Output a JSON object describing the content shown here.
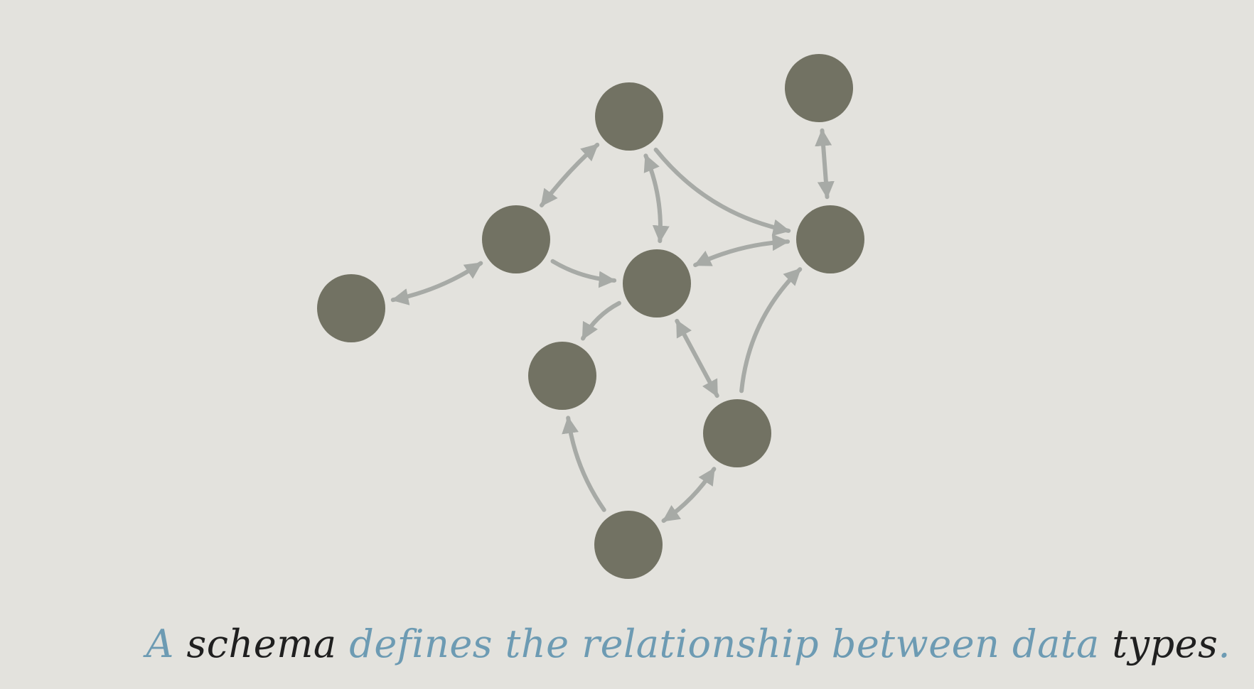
{
  "colors": {
    "background": "#e3e2dd",
    "node": "#727263",
    "edge": "#a7aaa6",
    "caption_accent": "#6d9bb3",
    "caption_dark": "#1f1f1f"
  },
  "caption": {
    "segments": [
      {
        "text": "A",
        "color": "#6d9bb3"
      },
      {
        "text": " schema ",
        "color": "#1f1f1f"
      },
      {
        "text": "defines the relationship between data ",
        "color": "#6d9bb3"
      },
      {
        "text": "types",
        "color": "#1f1f1f"
      },
      {
        "text": ".",
        "color": "#6d9bb3"
      }
    ]
  }
}
